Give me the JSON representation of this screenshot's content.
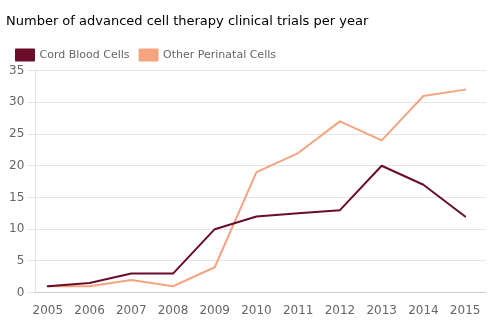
{
  "chart_data": {
    "type": "line",
    "title": "Number of advanced cell therapy clinical trials per year",
    "x": [
      2005,
      2006,
      2007,
      2008,
      2009,
      2010,
      2011,
      2012,
      2013,
      2014,
      2015
    ],
    "series": [
      {
        "name": "Cord Blood Cells",
        "color": "#6b0d2a",
        "values": [
          1,
          1.5,
          3,
          3,
          10,
          12,
          12.5,
          13,
          20,
          17,
          12
        ]
      },
      {
        "name": "Other Perinatal Cells",
        "color": "#f4a580",
        "values": [
          1,
          1,
          2,
          1,
          4,
          19,
          22,
          27,
          24,
          31,
          32
        ]
      }
    ],
    "xlim": [
      2004.7,
      2015.5
    ],
    "xticks": [
      2005,
      2006,
      2007,
      2008,
      2009,
      2010,
      2011,
      2012,
      2013,
      2014,
      2015
    ],
    "ylim": [
      0,
      35
    ],
    "yticks": [
      0,
      5,
      10,
      15,
      20,
      25,
      30,
      35
    ],
    "grid": "y",
    "legend": "upper left"
  }
}
